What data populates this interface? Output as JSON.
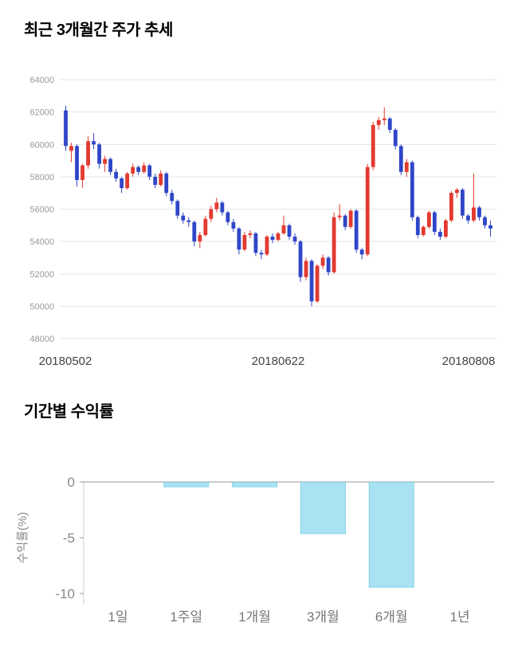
{
  "price_section": {
    "title": "최근 3개월간 주가 추세"
  },
  "returns_section": {
    "title": "기간별 수익률"
  },
  "chart_data": [
    {
      "type": "candlestick",
      "title": "최근 3개월간 주가 추세",
      "ylim": [
        48000,
        64000
      ],
      "yticks": [
        48000,
        50000,
        52000,
        54000,
        56000,
        58000,
        60000,
        62000,
        64000
      ],
      "xticks": [
        "20180502",
        "20180622",
        "20180808"
      ],
      "colors": {
        "up": "#e23a30",
        "down": "#2f46c8"
      },
      "grid_color": "#e6e6e6",
      "candles": [
        [
          62100,
          62400,
          59600,
          59900
        ],
        [
          59600,
          60100,
          58900,
          59900
        ],
        [
          59900,
          60000,
          57400,
          57800
        ],
        [
          57800,
          58800,
          57300,
          58700
        ],
        [
          58700,
          60500,
          58500,
          60200
        ],
        [
          60200,
          60700,
          59700,
          60000
        ],
        [
          60000,
          60100,
          58500,
          58800
        ],
        [
          58800,
          59300,
          58300,
          59100
        ],
        [
          59100,
          59200,
          58100,
          58300
        ],
        [
          58300,
          58500,
          57700,
          57900
        ],
        [
          57900,
          58000,
          57000,
          57300
        ],
        [
          57300,
          58300,
          57200,
          58200
        ],
        [
          58200,
          58800,
          58000,
          58600
        ],
        [
          58600,
          58700,
          58100,
          58300
        ],
        [
          58300,
          58900,
          58200,
          58700
        ],
        [
          58700,
          58800,
          57800,
          58000
        ],
        [
          58000,
          58200,
          57300,
          57500
        ],
        [
          57500,
          58400,
          57400,
          58200
        ],
        [
          58200,
          58300,
          56800,
          57000
        ],
        [
          57000,
          57200,
          56300,
          56500
        ],
        [
          56500,
          56600,
          55400,
          55600
        ],
        [
          55600,
          55800,
          55100,
          55300
        ],
        [
          55300,
          55500,
          54900,
          55200
        ],
        [
          55200,
          55300,
          53700,
          54000
        ],
        [
          54000,
          54600,
          53600,
          54400
        ],
        [
          54400,
          55600,
          54300,
          55400
        ],
        [
          55400,
          56200,
          55200,
          56000
        ],
        [
          56000,
          56700,
          55800,
          56400
        ],
        [
          56400,
          56500,
          55600,
          55800
        ],
        [
          55800,
          55900,
          55000,
          55200
        ],
        [
          55200,
          55400,
          54600,
          54800
        ],
        [
          54800,
          54900,
          53200,
          53500
        ],
        [
          53500,
          54600,
          53400,
          54400
        ],
        [
          54400,
          54700,
          54200,
          54500
        ],
        [
          54500,
          54600,
          53100,
          53300
        ],
        [
          53300,
          53500,
          52900,
          53200
        ],
        [
          53200,
          54400,
          53100,
          54300
        ],
        [
          54300,
          54500,
          53900,
          54100
        ],
        [
          54100,
          54600,
          54000,
          54500
        ],
        [
          54500,
          55600,
          54400,
          55000
        ],
        [
          55000,
          55100,
          54100,
          54300
        ],
        [
          54300,
          54500,
          53800,
          54000
        ],
        [
          54000,
          54100,
          51500,
          51800
        ],
        [
          51800,
          53000,
          51600,
          52800
        ],
        [
          52800,
          52900,
          50000,
          50300
        ],
        [
          50300,
          52600,
          50200,
          52500
        ],
        [
          52500,
          53200,
          52300,
          53000
        ],
        [
          53000,
          53100,
          51900,
          52100
        ],
        [
          52100,
          55800,
          52000,
          55500
        ],
        [
          55500,
          56300,
          55300,
          55600
        ],
        [
          55600,
          55700,
          54700,
          54900
        ],
        [
          54900,
          56000,
          54800,
          55900
        ],
        [
          55900,
          56000,
          53300,
          53500
        ],
        [
          53500,
          53600,
          52900,
          53200
        ],
        [
          53200,
          58800,
          53100,
          58600
        ],
        [
          58600,
          61400,
          58400,
          61200
        ],
        [
          61200,
          61700,
          60900,
          61500
        ],
        [
          61500,
          62300,
          61200,
          61600
        ],
        [
          61600,
          61700,
          60700,
          60900
        ],
        [
          60900,
          61000,
          59700,
          59900
        ],
        [
          59900,
          60000,
          58100,
          58300
        ],
        [
          58300,
          59100,
          58000,
          58900
        ],
        [
          58900,
          59000,
          55300,
          55500
        ],
        [
          55500,
          55600,
          54200,
          54400
        ],
        [
          54400,
          55000,
          54300,
          54900
        ],
        [
          54900,
          55900,
          54800,
          55800
        ],
        [
          55800,
          55900,
          54400,
          54600
        ],
        [
          54600,
          54800,
          54100,
          54300
        ],
        [
          54300,
          55400,
          54200,
          55300
        ],
        [
          55300,
          57100,
          55200,
          57000
        ],
        [
          57000,
          57300,
          56700,
          57200
        ],
        [
          57200,
          57300,
          55400,
          55600
        ],
        [
          55600,
          55700,
          55100,
          55300
        ],
        [
          55300,
          58200,
          55200,
          56100
        ],
        [
          56100,
          56200,
          55300,
          55500
        ],
        [
          55500,
          55600,
          54800,
          55000
        ],
        [
          55000,
          55300,
          54300,
          54800
        ]
      ]
    },
    {
      "type": "bar",
      "title": "기간별 수익률",
      "ylabel": "수익률(%)",
      "categories": [
        "1일",
        "1주일",
        "1개월",
        "3개월",
        "6개월",
        "1년"
      ],
      "values": [
        0,
        -0.4,
        -0.4,
        -4.6,
        -9.4,
        0
      ],
      "yticks": [
        0,
        -5,
        -10
      ],
      "ylim": [
        -11,
        0.5
      ],
      "bar_color": "#a9e2f3",
      "bar_stroke": "#85d3ea",
      "axis_color": "#999999",
      "tick_label_color": "#888888",
      "category_label_color": "#777777"
    }
  ]
}
